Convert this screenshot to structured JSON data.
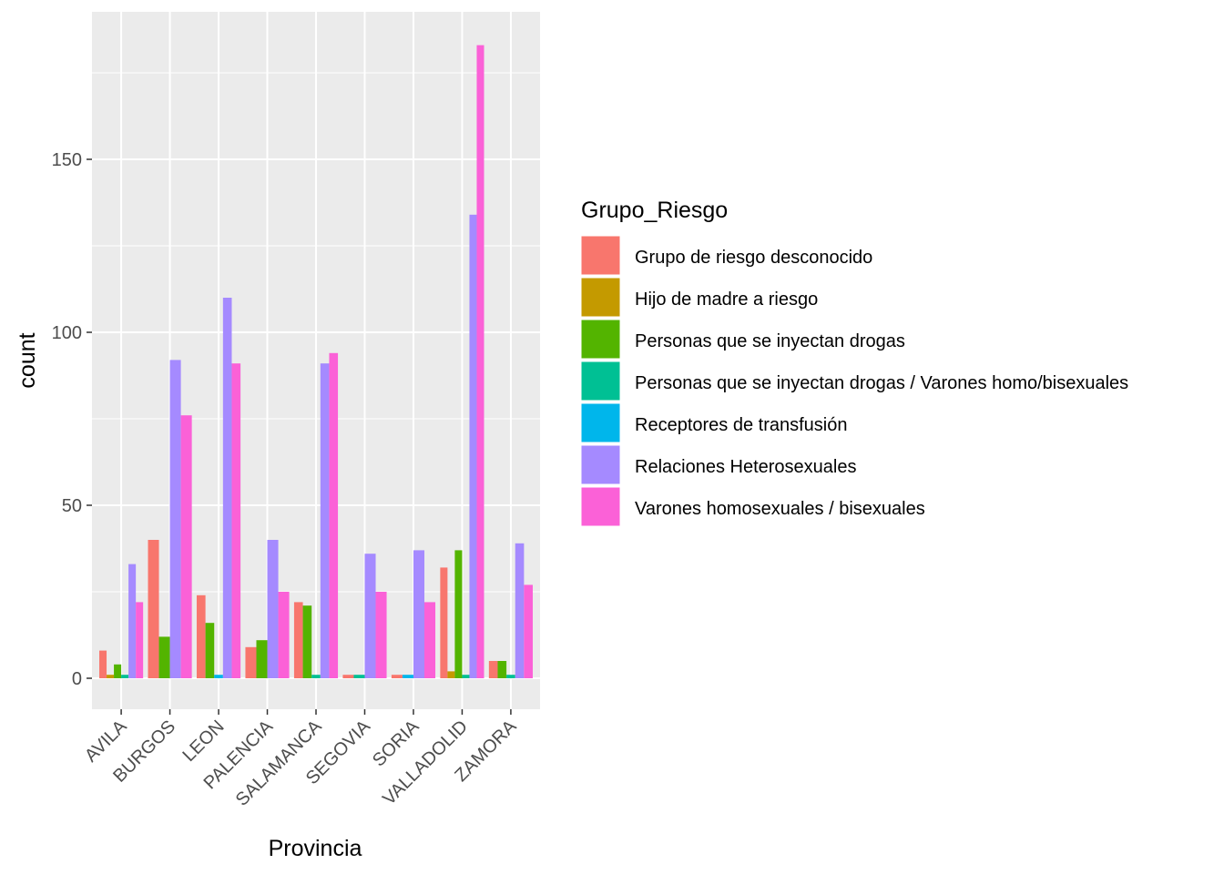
{
  "chart_data": {
    "type": "bar",
    "xlabel": "Provincia",
    "ylabel": "count",
    "ylim": [
      0,
      191
    ],
    "yticks": [
      0,
      50,
      100,
      150
    ],
    "grid": true,
    "legend_title": "Grupo_Riesgo",
    "legend_position": "right",
    "categories": [
      "AVILA",
      "BURGOS",
      "LEON",
      "PALENCIA",
      "SALAMANCA",
      "SEGOVIA",
      "SORIA",
      "VALLADOLID",
      "ZAMORA"
    ],
    "series": [
      {
        "name": "Grupo de riesgo desconocido",
        "color": "#F8766D",
        "values": [
          8,
          40,
          24,
          9,
          22,
          1,
          1,
          32,
          5
        ]
      },
      {
        "name": "Hijo de madre a riesgo",
        "color": "#C49A00",
        "values": [
          1,
          null,
          null,
          null,
          null,
          null,
          null,
          2,
          null
        ]
      },
      {
        "name": "Personas que se inyectan drogas",
        "color": "#53B400",
        "values": [
          4,
          12,
          16,
          11,
          21,
          null,
          null,
          37,
          5
        ]
      },
      {
        "name": "Personas que se inyectan drogas / Varones homo/bisexuales",
        "color": "#00C094",
        "values": [
          1,
          null,
          null,
          null,
          1,
          1,
          null,
          1,
          1
        ]
      },
      {
        "name": "Receptores de transfusión",
        "color": "#00B6EB",
        "values": [
          null,
          null,
          1,
          null,
          null,
          null,
          1,
          null,
          null
        ]
      },
      {
        "name": "Relaciones Heterosexuales",
        "color": "#A58AFF",
        "values": [
          33,
          92,
          110,
          40,
          91,
          36,
          37,
          134,
          39
        ]
      },
      {
        "name": "Varones homosexuales / bisexuales",
        "color": "#FB61D7",
        "values": [
          22,
          76,
          91,
          25,
          94,
          25,
          22,
          183,
          27
        ]
      }
    ]
  }
}
